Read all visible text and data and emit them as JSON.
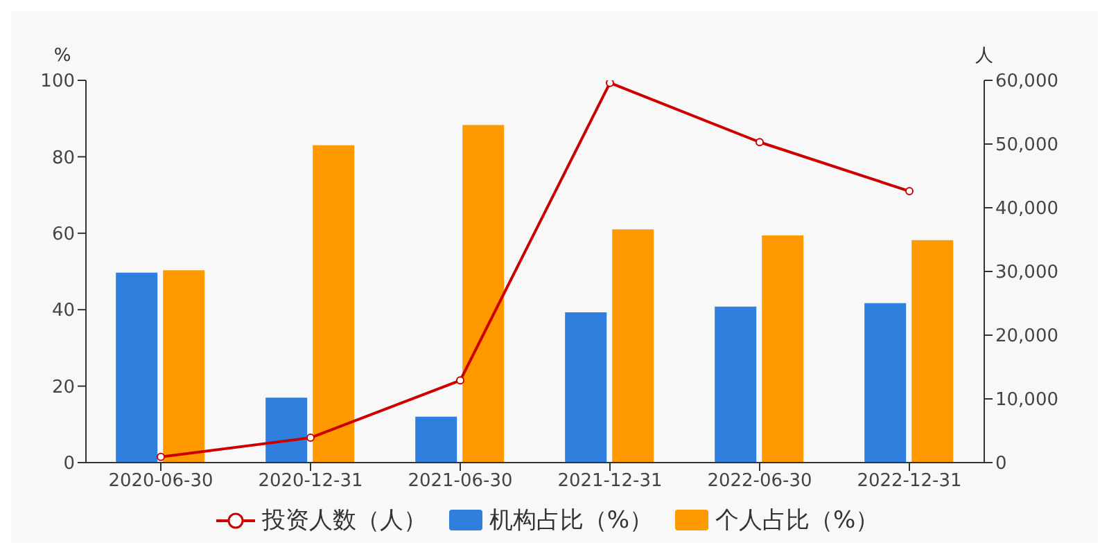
{
  "chart_data": {
    "type": "bar",
    "categories": [
      "2020-06-30",
      "2020-12-31",
      "2021-06-30",
      "2021-12-31",
      "2022-06-30",
      "2022-12-31"
    ],
    "ylabel": "%",
    "y2label": "人",
    "series": [
      {
        "name": "投资人数（人）",
        "type": "line",
        "axis": "y2",
        "color": "#cc0000",
        "marker": "circle",
        "values": [
          900,
          3900,
          12900,
          59600,
          50300,
          42600
        ]
      },
      {
        "name": "机构占比（%）",
        "color": "#2e7fde",
        "values": [
          49.7,
          17,
          12,
          39.3,
          40.8,
          41.7
        ]
      },
      {
        "name": "个人占比（%）",
        "color": "#fe9900",
        "values": [
          50.3,
          83,
          88.3,
          61,
          59.4,
          58.2
        ]
      }
    ],
    "ylim": [
      0,
      100
    ],
    "yticks": [
      0,
      20,
      40,
      60,
      80,
      100
    ],
    "y2lim": [
      0,
      60000
    ],
    "y2ticks": [
      {
        "value": 0,
        "label": "0"
      },
      {
        "value": 10000,
        "label": "10,000"
      },
      {
        "value": 20000,
        "label": "20,000"
      },
      {
        "value": 30000,
        "label": "30,000"
      },
      {
        "value": 40000,
        "label": "40,000"
      },
      {
        "value": 50000,
        "label": "50,000"
      },
      {
        "value": 60000,
        "label": "60,000"
      }
    ],
    "legend": "bottom"
  }
}
